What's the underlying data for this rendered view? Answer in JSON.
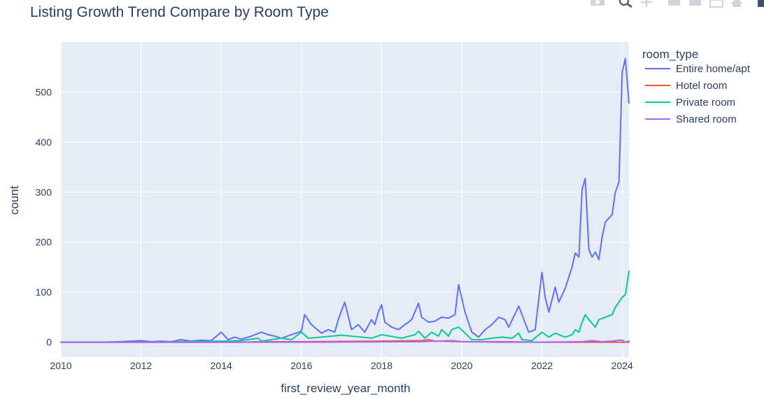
{
  "toolbar": {
    "icons": [
      "camera-icon",
      "zoom-icon",
      "pan-icon",
      "zoom-in-icon",
      "zoom-out-icon",
      "autoscale-icon",
      "home-icon",
      "plotly-logo-icon"
    ]
  },
  "chart_data": {
    "type": "line",
    "title": "Listing Growth Trend Compare by Room Type",
    "xlabel": "first_review_year_month",
    "ylabel": "count",
    "xlim": [
      2010.0,
      2024.17
    ],
    "ylim": [
      -30,
      600
    ],
    "x_ticks": [
      2010,
      2012,
      2014,
      2016,
      2018,
      2020,
      2022,
      2024
    ],
    "x_tick_labels": [
      "2010",
      "2012",
      "2014",
      "2016",
      "2018",
      "2020",
      "2022",
      "2024"
    ],
    "y_ticks": [
      0,
      100,
      200,
      300,
      400,
      500
    ],
    "y_tick_labels": [
      "0",
      "100",
      "200",
      "300",
      "400",
      "500"
    ],
    "grid": true,
    "legend": {
      "title": "room_type",
      "placement": "right"
    },
    "series": [
      {
        "name": "Entire home/apt",
        "color": "#636efa",
        "points": [
          [
            2010.0,
            0
          ],
          [
            2010.5,
            0
          ],
          [
            2011.0,
            0
          ],
          [
            2011.5,
            1
          ],
          [
            2012.0,
            3
          ],
          [
            2012.25,
            1
          ],
          [
            2012.5,
            2
          ],
          [
            2012.75,
            1
          ],
          [
            2013.0,
            5
          ],
          [
            2013.25,
            2
          ],
          [
            2013.5,
            4
          ],
          [
            2013.75,
            3
          ],
          [
            2014.0,
            20
          ],
          [
            2014.17,
            5
          ],
          [
            2014.33,
            10
          ],
          [
            2014.5,
            6
          ],
          [
            2014.75,
            12
          ],
          [
            2015.0,
            20
          ],
          [
            2015.17,
            15
          ],
          [
            2015.33,
            12
          ],
          [
            2015.5,
            8
          ],
          [
            2015.75,
            15
          ],
          [
            2016.0,
            22
          ],
          [
            2016.08,
            55
          ],
          [
            2016.25,
            35
          ],
          [
            2016.5,
            18
          ],
          [
            2016.67,
            25
          ],
          [
            2016.83,
            20
          ],
          [
            2016.92,
            45
          ],
          [
            2017.08,
            80
          ],
          [
            2017.25,
            25
          ],
          [
            2017.42,
            35
          ],
          [
            2017.58,
            20
          ],
          [
            2017.75,
            45
          ],
          [
            2017.83,
            35
          ],
          [
            2017.92,
            60
          ],
          [
            2018.0,
            75
          ],
          [
            2018.08,
            40
          ],
          [
            2018.25,
            30
          ],
          [
            2018.42,
            25
          ],
          [
            2018.58,
            35
          ],
          [
            2018.75,
            45
          ],
          [
            2018.92,
            78
          ],
          [
            2019.0,
            50
          ],
          [
            2019.17,
            40
          ],
          [
            2019.33,
            42
          ],
          [
            2019.5,
            50
          ],
          [
            2019.67,
            48
          ],
          [
            2019.83,
            55
          ],
          [
            2019.92,
            115
          ],
          [
            2020.08,
            60
          ],
          [
            2020.25,
            20
          ],
          [
            2020.42,
            10
          ],
          [
            2020.58,
            25
          ],
          [
            2020.75,
            35
          ],
          [
            2020.92,
            50
          ],
          [
            2021.08,
            45
          ],
          [
            2021.17,
            30
          ],
          [
            2021.42,
            72
          ],
          [
            2021.5,
            55
          ],
          [
            2021.67,
            20
          ],
          [
            2021.83,
            25
          ],
          [
            2022.0,
            140
          ],
          [
            2022.08,
            90
          ],
          [
            2022.17,
            60
          ],
          [
            2022.33,
            110
          ],
          [
            2022.42,
            80
          ],
          [
            2022.58,
            108
          ],
          [
            2022.75,
            150
          ],
          [
            2022.83,
            178
          ],
          [
            2022.92,
            170
          ],
          [
            2023.0,
            305
          ],
          [
            2023.08,
            327
          ],
          [
            2023.17,
            185
          ],
          [
            2023.25,
            170
          ],
          [
            2023.33,
            180
          ],
          [
            2023.42,
            165
          ],
          [
            2023.5,
            210
          ],
          [
            2023.58,
            240
          ],
          [
            2023.75,
            255
          ],
          [
            2023.83,
            300
          ],
          [
            2023.92,
            320
          ],
          [
            2024.0,
            540
          ],
          [
            2024.08,
            567
          ],
          [
            2024.17,
            478
          ]
        ]
      },
      {
        "name": "Hotel room",
        "color": "#ef553b",
        "points": [
          [
            2010.0,
            0
          ],
          [
            2014.5,
            0
          ],
          [
            2015.0,
            1
          ],
          [
            2016.0,
            1
          ],
          [
            2018.0,
            2
          ],
          [
            2019.0,
            3
          ],
          [
            2019.17,
            5
          ],
          [
            2019.33,
            2
          ],
          [
            2020.0,
            1
          ],
          [
            2021.0,
            1
          ],
          [
            2022.0,
            0
          ],
          [
            2024.17,
            0
          ]
        ]
      },
      {
        "name": "Private room",
        "color": "#00cc96",
        "points": [
          [
            2010.0,
            0
          ],
          [
            2012.0,
            0
          ],
          [
            2013.0,
            1
          ],
          [
            2014.0,
            2
          ],
          [
            2014.5,
            3
          ],
          [
            2014.92,
            8
          ],
          [
            2015.0,
            2
          ],
          [
            2015.5,
            8
          ],
          [
            2015.75,
            5
          ],
          [
            2016.0,
            20
          ],
          [
            2016.17,
            8
          ],
          [
            2016.5,
            10
          ],
          [
            2016.75,
            12
          ],
          [
            2017.0,
            14
          ],
          [
            2017.5,
            10
          ],
          [
            2017.75,
            8
          ],
          [
            2018.0,
            15
          ],
          [
            2018.5,
            8
          ],
          [
            2018.83,
            15
          ],
          [
            2018.92,
            22
          ],
          [
            2019.08,
            8
          ],
          [
            2019.25,
            20
          ],
          [
            2019.42,
            12
          ],
          [
            2019.5,
            25
          ],
          [
            2019.67,
            12
          ],
          [
            2019.75,
            25
          ],
          [
            2019.92,
            30
          ],
          [
            2020.08,
            18
          ],
          [
            2020.25,
            5
          ],
          [
            2020.5,
            5
          ],
          [
            2020.75,
            8
          ],
          [
            2021.0,
            10
          ],
          [
            2021.25,
            8
          ],
          [
            2021.42,
            18
          ],
          [
            2021.5,
            5
          ],
          [
            2021.75,
            3
          ],
          [
            2022.0,
            20
          ],
          [
            2022.17,
            10
          ],
          [
            2022.33,
            18
          ],
          [
            2022.58,
            10
          ],
          [
            2022.75,
            15
          ],
          [
            2022.83,
            25
          ],
          [
            2022.92,
            20
          ],
          [
            2023.0,
            40
          ],
          [
            2023.08,
            55
          ],
          [
            2023.17,
            45
          ],
          [
            2023.33,
            30
          ],
          [
            2023.42,
            45
          ],
          [
            2023.58,
            50
          ],
          [
            2023.75,
            55
          ],
          [
            2023.83,
            70
          ],
          [
            2023.92,
            80
          ],
          [
            2024.0,
            90
          ],
          [
            2024.08,
            95
          ],
          [
            2024.17,
            142
          ]
        ]
      },
      {
        "name": "Shared room",
        "color": "#ab63fa",
        "points": [
          [
            2010.0,
            0
          ],
          [
            2016.0,
            0
          ],
          [
            2019.0,
            1
          ],
          [
            2019.75,
            3
          ],
          [
            2020.0,
            1
          ],
          [
            2021.0,
            0
          ],
          [
            2022.0,
            0
          ],
          [
            2023.0,
            1
          ],
          [
            2023.25,
            3
          ],
          [
            2023.5,
            1
          ],
          [
            2023.75,
            2
          ],
          [
            2023.92,
            4
          ],
          [
            2024.0,
            4
          ],
          [
            2024.08,
            0
          ],
          [
            2024.17,
            2
          ]
        ]
      }
    ]
  }
}
